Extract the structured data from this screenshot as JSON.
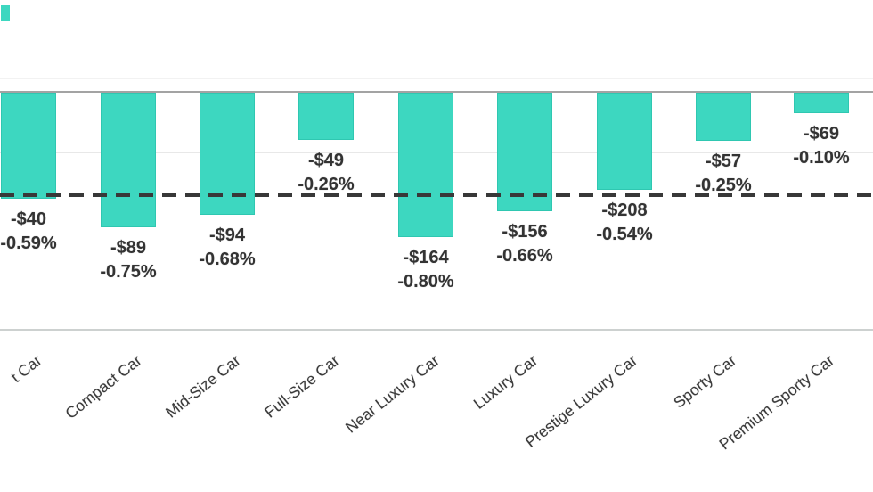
{
  "chart_data": {
    "type": "bar",
    "title": "",
    "categories": [
      "t Car",
      "Compact Car",
      "Mid-Size Car",
      "Full-Size Car",
      "Near Luxury Car",
      "Luxury Car",
      "Prestige Luxury Car",
      "Sporty Car",
      "Premium Sporty Car"
    ],
    "series": [
      {
        "name": "dollar_change",
        "values": [
          -40,
          -89,
          -94,
          -49,
          -164,
          -156,
          -208,
          -57,
          -69
        ]
      },
      {
        "name": "percent_change",
        "values": [
          -0.59,
          -0.75,
          -0.68,
          -0.26,
          -0.8,
          -0.66,
          -0.54,
          -0.25,
          -0.1
        ]
      }
    ],
    "bar_labels": [
      {
        "dollar": "-$40",
        "percent": "-0.59%"
      },
      {
        "dollar": "-$89",
        "percent": "-0.75%"
      },
      {
        "dollar": "-$94",
        "percent": "-0.68%"
      },
      {
        "dollar": "-$49",
        "percent": "-0.26%"
      },
      {
        "dollar": "-$164",
        "percent": "-0.80%"
      },
      {
        "dollar": "-$156",
        "percent": "-0.66%"
      },
      {
        "dollar": "-$208",
        "percent": "-0.54%"
      },
      {
        "dollar": "-$57",
        "percent": "-0.25%"
      },
      {
        "dollar": "-$69",
        "percent": "-0.10%"
      }
    ],
    "bar_metric": "percent_change",
    "ylim": [
      -1.33,
      0.5
    ],
    "grid": "faint horizontal gridlines",
    "legend": "none",
    "reference_line": {
      "style": "dashed",
      "approx_value_percent": -0.58
    }
  },
  "colors": {
    "bar_fill": "#3dd7c0",
    "bar_border": "#2fc7b1",
    "label_text": "#333333",
    "dashed_line": "#383838",
    "zero_axis": "#a3a3a3",
    "bottom_axis": "#cdd1d0",
    "gridline": "#e8e8e8"
  }
}
